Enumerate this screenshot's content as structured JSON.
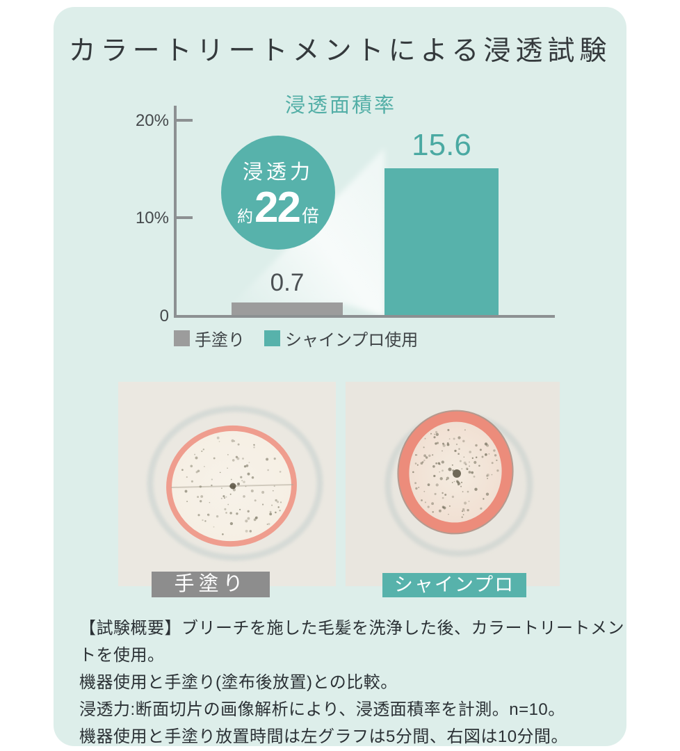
{
  "page": {
    "title": "カラートリートメントによる浸透試験"
  },
  "chart_data": {
    "type": "bar",
    "title": "浸透面積率",
    "categories": [
      "手塗り",
      "シャインプロ使用"
    ],
    "values": [
      0.7,
      15.6
    ],
    "value_labels": [
      "0.7",
      "15.6"
    ],
    "unit": "%",
    "ylim": [
      0,
      20
    ],
    "yticks": [
      "20%",
      "10%",
      "0"
    ],
    "grid": "off",
    "legend_position": "bottom",
    "legend": [
      {
        "label": "手塗り",
        "color": "#9c9c9c"
      },
      {
        "label": "シャインプロ使用",
        "color": "#57b2ab"
      }
    ],
    "badge": {
      "line1": "浸透力",
      "prefix": "約",
      "number": "22",
      "suffix": "倍"
    }
  },
  "photos": [
    {
      "label": "手塗り",
      "banner_color": "#8d8d8d"
    },
    {
      "label": "シャインプロ",
      "banner_color": "#57b2ab"
    }
  ],
  "notes": {
    "lines": [
      "【試験概要】ブリーチを施した毛髪を洗浄した後、カラートリートメントを使用。",
      "機器使用と手塗り(塗布後放置)との比較。",
      "浸透力:断面切片の画像解析により、浸透面積率を計測。n=10。",
      "機器使用と手塗り放置時間は左グラフは5分間、右図は10分間。"
    ]
  },
  "colors": {
    "background_panel": "#ddeeea",
    "teal": "#57b2ab",
    "teal_text": "#4aa9a2",
    "gray_bar": "#9c9c9c",
    "axis": "#8c9092",
    "title_text": "#34393c",
    "note_text": "#2b3135",
    "photo_background": "#ebe8e1",
    "hair_ring_pink": "#ee9485"
  }
}
